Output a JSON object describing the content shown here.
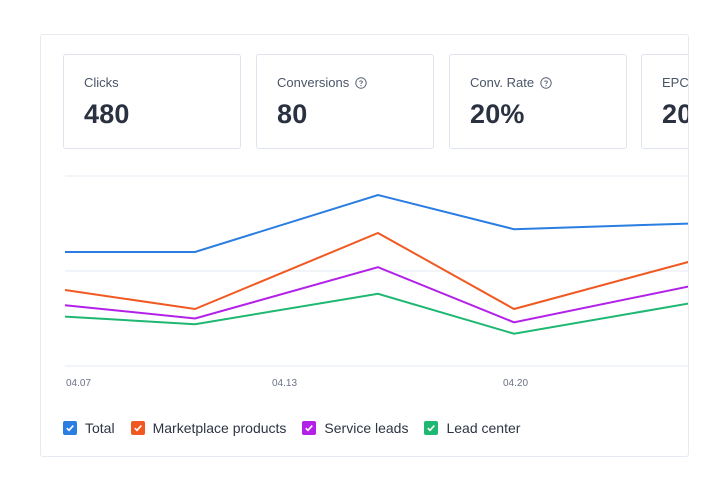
{
  "stats": [
    {
      "label": "Clicks",
      "value": "480",
      "has_help": false
    },
    {
      "label": "Conversions",
      "value": "80",
      "has_help": true,
      "help_icon": "help-circle-icon"
    },
    {
      "label": "Conv. Rate",
      "value": "20%",
      "has_help": true,
      "help_icon": "help-circle-icon"
    },
    {
      "label": "EPC",
      "value": "20",
      "has_help": false
    }
  ],
  "chart_data": {
    "type": "line",
    "x_ticks": [
      "04.07",
      "04.13",
      "04.20"
    ],
    "grid": true,
    "legend_placement": "bottom-left",
    "ylim": [
      0,
      100
    ],
    "series": [
      {
        "name": "Total",
        "color": "#2a7de1",
        "values": [
          60,
          60,
          90,
          72,
          75
        ]
      },
      {
        "name": "Marketplace products",
        "color": "#f05a22",
        "values": [
          40,
          30,
          70,
          30,
          55
        ]
      },
      {
        "name": "Service leads",
        "color": "#b321e8",
        "values": [
          32,
          25,
          52,
          23,
          42
        ]
      },
      {
        "name": "Lead center",
        "color": "#1eb872",
        "values": [
          26,
          22,
          38,
          17,
          33
        ]
      }
    ]
  },
  "legend": [
    {
      "label": "Total",
      "color": "#2a7de1",
      "checked": true
    },
    {
      "label": "Marketplace products",
      "color": "#f05a22",
      "checked": true
    },
    {
      "label": "Service leads",
      "color": "#b321e8",
      "checked": true
    },
    {
      "label": "Lead center",
      "color": "#1eb872",
      "checked": true
    }
  ]
}
